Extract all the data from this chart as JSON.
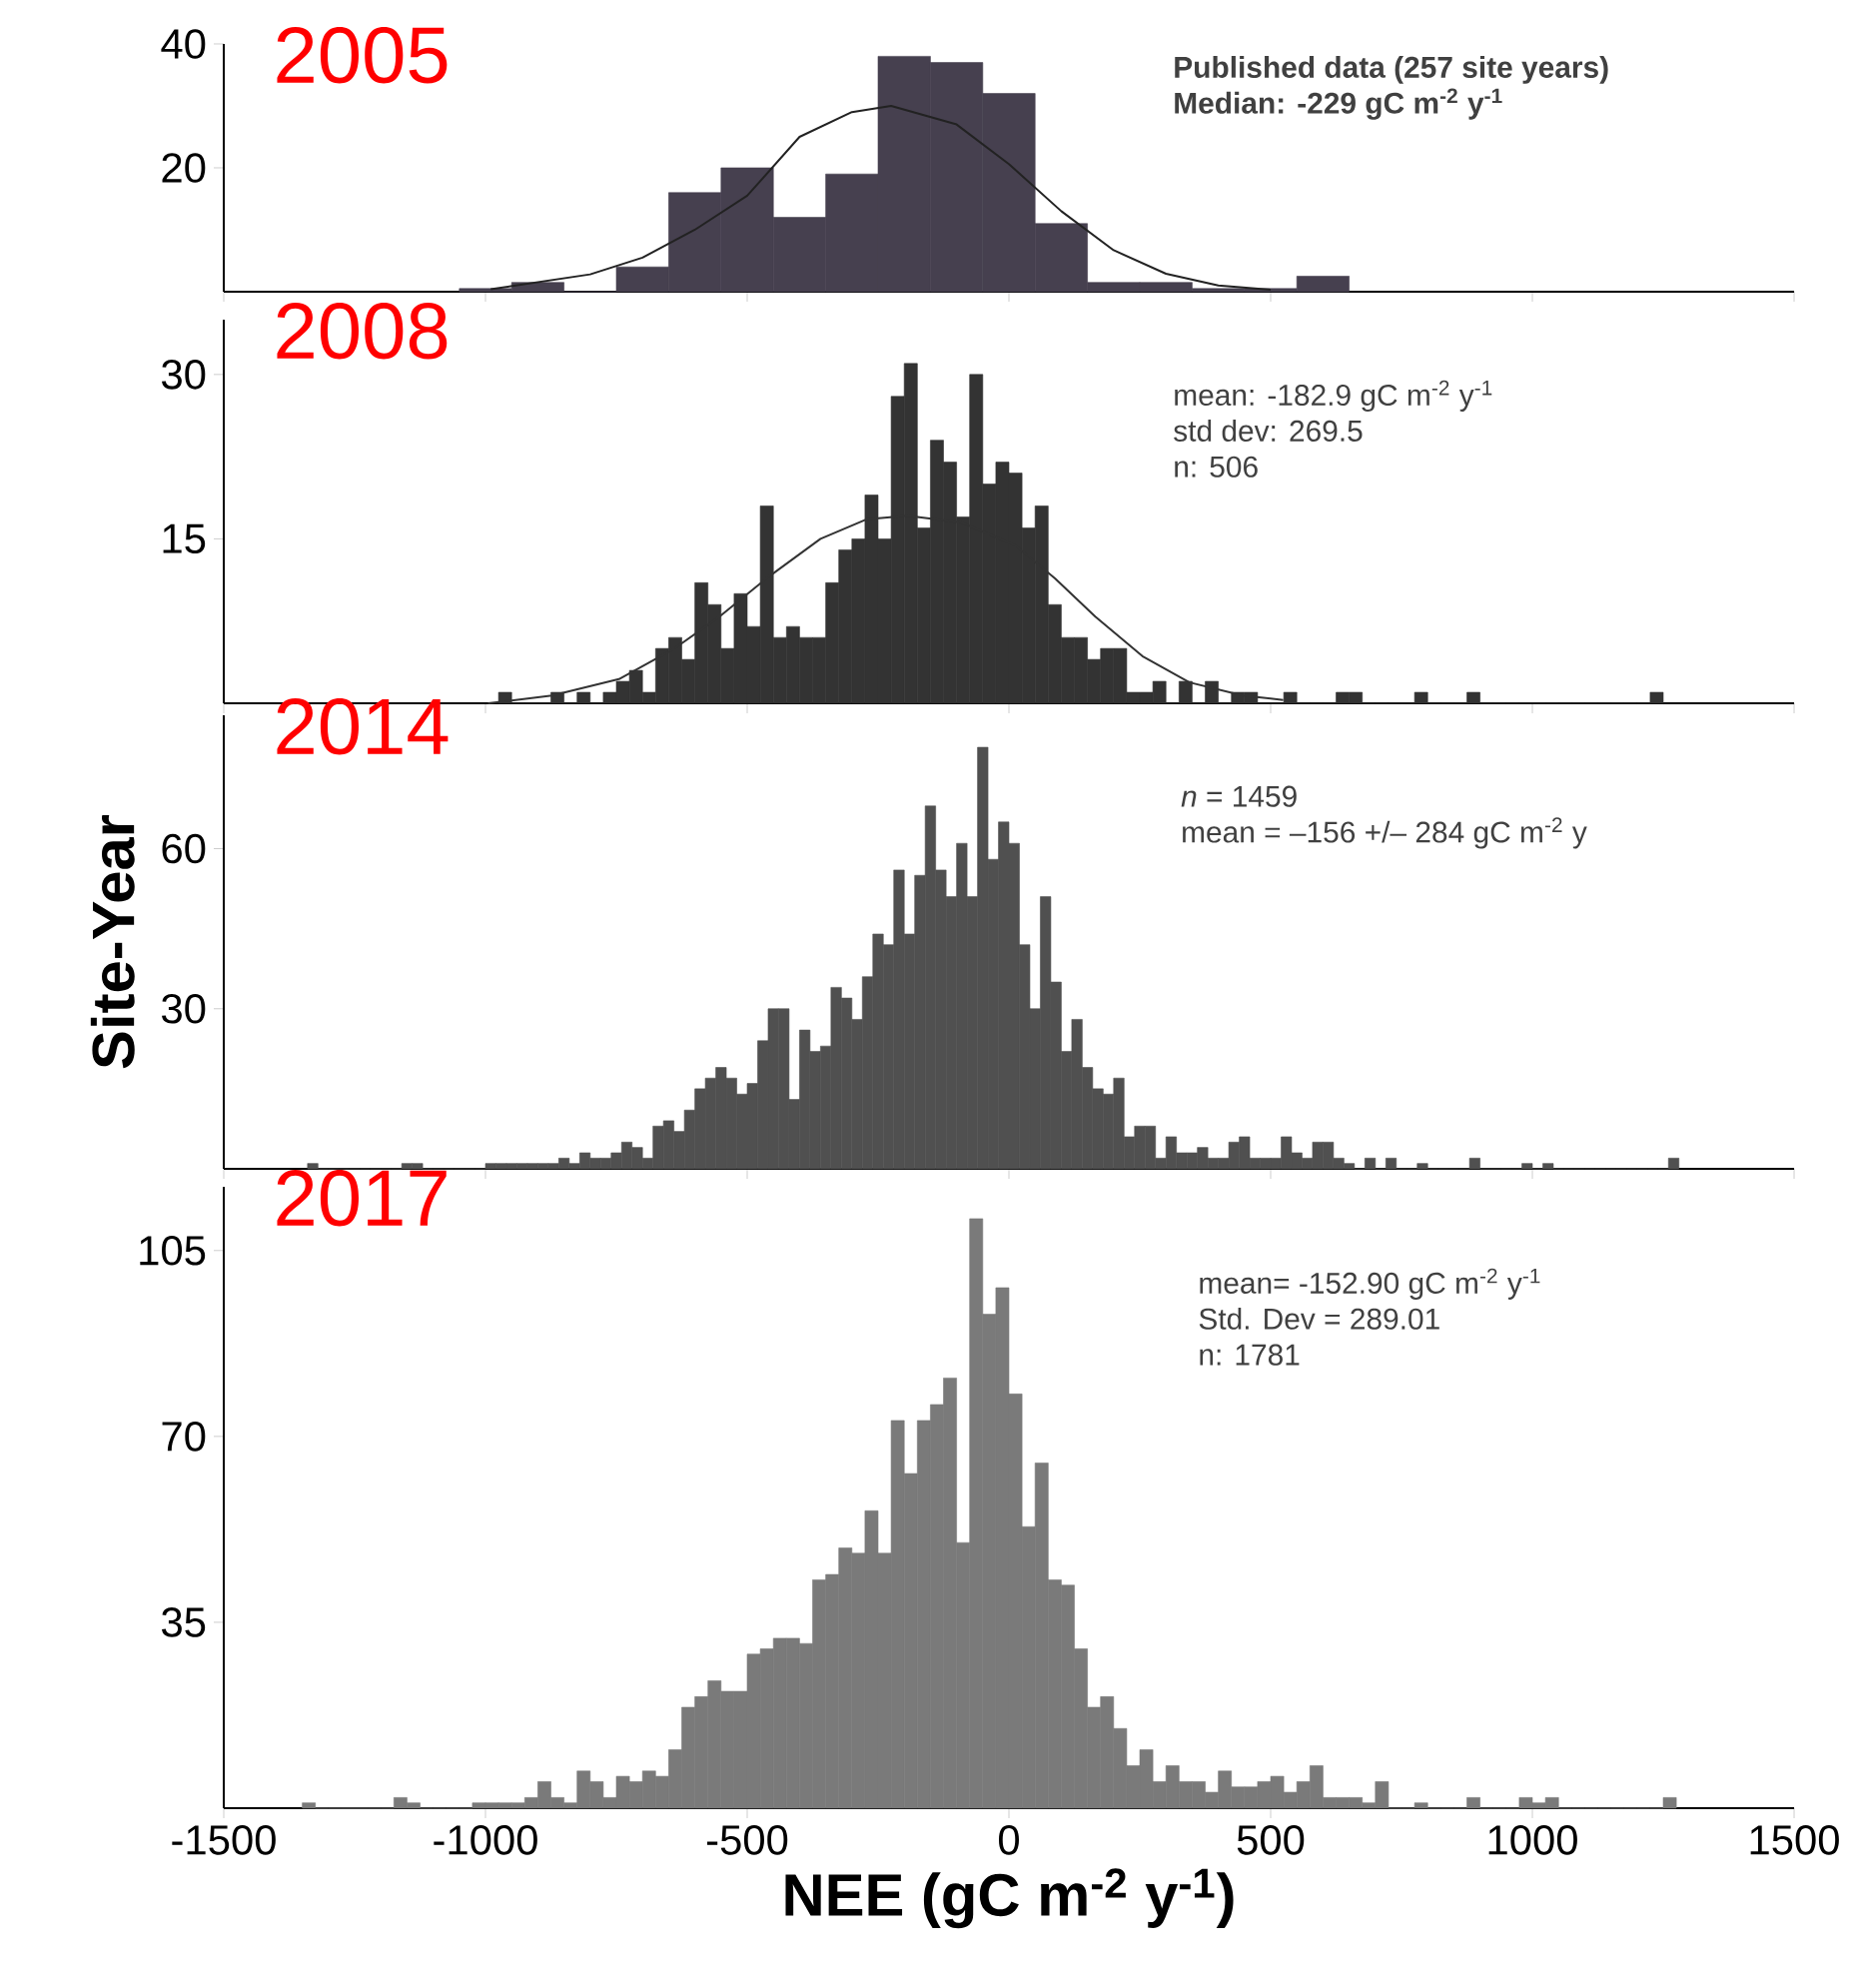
{
  "chart_data": [
    {
      "type": "histogram",
      "title": "2005",
      "color": "#46404f",
      "bins": [
        -1050,
        -950,
        -850,
        -750,
        -650,
        -550,
        -450,
        -350,
        -250,
        -150,
        -50,
        50,
        150,
        250,
        350,
        450,
        550,
        650
      ],
      "values": [
        0.5,
        1.5,
        0,
        4,
        16,
        20,
        12,
        19,
        38,
        37,
        32,
        11,
        1.5,
        1.5,
        0.5,
        0.5,
        2.5
      ],
      "series": [
        {
          "type": "line",
          "color": "#222222",
          "x": [
            -990,
            -800,
            -700,
            -600,
            -500,
            -400,
            -300,
            -225,
            -100,
            0,
            100,
            200,
            300,
            400,
            500
          ],
          "values": [
            0.4,
            2.8,
            5.5,
            10,
            15.5,
            25,
            29,
            30,
            27,
            20.6,
            13,
            6.7,
            2.9,
            1,
            0.3
          ]
        }
      ],
      "xlim": [
        -1500,
        1500
      ],
      "ylim": [
        0,
        40
      ],
      "xticks": [
        -1500,
        -1000,
        -500,
        0,
        500,
        1000,
        1500
      ],
      "yticks": [
        20,
        40
      ],
      "tick_labels": "y",
      "annotations": [
        "**Published data (257 site years)**",
        "**Median: -229 gC m$^{-2}$ y$^{-1}$**"
      ]
    },
    {
      "type": "histogram",
      "title": "2008",
      "color": "#333333",
      "bins": [
        -975,
        -950,
        -925,
        -900,
        -875,
        -850,
        -825,
        -800,
        -775,
        -750,
        -725,
        -700,
        -675,
        -650,
        -625,
        -600,
        -575,
        -550,
        -525,
        -500,
        -475,
        -450,
        -425,
        -400,
        -375,
        -350,
        -325,
        -300,
        -275,
        -250,
        -225,
        -200,
        -175,
        -150,
        -125,
        -100,
        -75,
        -50,
        -25,
        0,
        25,
        50,
        75,
        100,
        125,
        150,
        175,
        200,
        225,
        250,
        275,
        300,
        325,
        350,
        375,
        400,
        425,
        450,
        475,
        500,
        525,
        550,
        575,
        600,
        625,
        650,
        675,
        700,
        725,
        750,
        775,
        800,
        825,
        850,
        875,
        900,
        925,
        950,
        975,
        1000,
        1025,
        1050,
        1075,
        1100,
        1125,
        1150,
        1175,
        1200,
        1225,
        1250
      ],
      "values": [
        1,
        0,
        0,
        0,
        1,
        0,
        1,
        0,
        1,
        2,
        3,
        1,
        5,
        6,
        4,
        11,
        9,
        5,
        10,
        7,
        18,
        6,
        7,
        6,
        6,
        11,
        14,
        15,
        19,
        15,
        28,
        31,
        16,
        24,
        22,
        17,
        30,
        20,
        22,
        21,
        16,
        18,
        9,
        6,
        6,
        4,
        5,
        5,
        1,
        1,
        2,
        0,
        2,
        0,
        2,
        0,
        1,
        1,
        0,
        0,
        1,
        0,
        0,
        0,
        1,
        1,
        0,
        0,
        0,
        0,
        1,
        0,
        0,
        0,
        1,
        0,
        0,
        0,
        0,
        0,
        0,
        0,
        0,
        0,
        0,
        0,
        0,
        0,
        1
      ],
      "series": [
        {
          "type": "line",
          "color": "#333333",
          "x": [
            -995,
            -873,
            -745,
            -642,
            -553,
            -463,
            -360,
            -271,
            -194,
            -91,
            12,
            88,
            165,
            255,
            345,
            447,
            524
          ],
          "values": [
            0,
            0.7,
            2.2,
            4.9,
            7.9,
            11.4,
            15,
            16.8,
            17.1,
            16.5,
            14.4,
            11.4,
            7.9,
            4.3,
            1.9,
            0.7,
            0.3
          ]
        }
      ],
      "xlim": [
        -1500,
        1500
      ],
      "ylim": [
        0,
        35
      ],
      "xticks": [
        -1500,
        -1000,
        -500,
        0,
        500,
        1000,
        1500
      ],
      "yticks": [
        15,
        30
      ],
      "tick_labels": "y",
      "annotations": [
        "mean: -182.9 gC m$^{-2}$ y$^{-1}$",
        "std dev: 269.5",
        "n: 506"
      ]
    },
    {
      "type": "histogram",
      "title": "2014",
      "color": "#505050",
      "ylabel": "Site-Year",
      "bins": [
        -1340,
        -1320,
        -1300,
        -1280,
        -1260,
        -1240,
        -1220,
        -1200,
        -1180,
        -1160,
        -1140,
        -1120,
        -1100,
        -1080,
        -1060,
        -1040,
        -1020,
        -1000,
        -980,
        -960,
        -940,
        -920,
        -900,
        -880,
        -860,
        -840,
        -820,
        -800,
        -780,
        -760,
        -740,
        -720,
        -700,
        -680,
        -660,
        -640,
        -620,
        -600,
        -580,
        -560,
        -540,
        -520,
        -500,
        -480,
        -460,
        -440,
        -420,
        -400,
        -380,
        -360,
        -340,
        -320,
        -300,
        -280,
        -260,
        -240,
        -220,
        -200,
        -180,
        -160,
        -140,
        -120,
        -100,
        -80,
        -60,
        -40,
        -20,
        0,
        20,
        40,
        60,
        80,
        100,
        120,
        140,
        160,
        180,
        200,
        220,
        240,
        260,
        280,
        300,
        320,
        340,
        360,
        380,
        400,
        420,
        440,
        460,
        480,
        500,
        520,
        540,
        560,
        580,
        600,
        620,
        640,
        660,
        680,
        700,
        720,
        740,
        760,
        780,
        800,
        820,
        840,
        860,
        880,
        900,
        920,
        940,
        960,
        980,
        1000,
        1020,
        1040,
        1060,
        1080,
        1100,
        1120,
        1140,
        1160,
        1180,
        1200,
        1220,
        1240,
        1260,
        1280
      ],
      "values": [
        1,
        0,
        0,
        0,
        0,
        0,
        0,
        0,
        0,
        1,
        1,
        0,
        0,
        0,
        0,
        0,
        0,
        1,
        1,
        1,
        1,
        1,
        1,
        1,
        2,
        1,
        3,
        2,
        2,
        3,
        5,
        4,
        2,
        8,
        9,
        7,
        11,
        15,
        17,
        19,
        17,
        14,
        16,
        24,
        30,
        30,
        13,
        26,
        22,
        23,
        34,
        32,
        28,
        36,
        44,
        42,
        56,
        44,
        55,
        68,
        56,
        51,
        61,
        51,
        79,
        58,
        65,
        61,
        42,
        30,
        51,
        35,
        22,
        28,
        19,
        15,
        14,
        17,
        6,
        8,
        8,
        2,
        6,
        3,
        3,
        4,
        2,
        2,
        5,
        6,
        2,
        2,
        2,
        6,
        3,
        2,
        5,
        5,
        2,
        1,
        0,
        2,
        0,
        2,
        0,
        0,
        1,
        0,
        0,
        0,
        0,
        2,
        0,
        0,
        0,
        0,
        1,
        0,
        1,
        0,
        0,
        0,
        0,
        0,
        0,
        0,
        0,
        0,
        0,
        0,
        2
      ],
      "xlim": [
        -1500,
        1500
      ],
      "ylim": [
        0,
        85
      ],
      "xticks": [
        -1500,
        -1000,
        -500,
        0,
        500,
        1000,
        1500
      ],
      "yticks": [
        30,
        60
      ],
      "tick_labels": "y",
      "annotations": [
        "*n* = 1459",
        "mean = –156 +/– 284 gC m$^{-2}$ y"
      ]
    },
    {
      "type": "histogram",
      "title": "2017",
      "color": "#7a7a7a",
      "xlabel": "NEE (gC m$^{-2}$ y$^{-1}$)",
      "bins": [
        -1350,
        -1325,
        -1300,
        -1275,
        -1250,
        -1225,
        -1200,
        -1175,
        -1150,
        -1125,
        -1100,
        -1075,
        -1050,
        -1025,
        -1000,
        -975,
        -950,
        -925,
        -900,
        -875,
        -850,
        -825,
        -800,
        -775,
        -750,
        -725,
        -700,
        -675,
        -650,
        -625,
        -600,
        -575,
        -550,
        -525,
        -500,
        -475,
        -450,
        -425,
        -400,
        -375,
        -350,
        -325,
        -300,
        -275,
        -250,
        -225,
        -200,
        -175,
        -150,
        -125,
        -100,
        -75,
        -50,
        -25,
        0,
        25,
        50,
        75,
        100,
        125,
        150,
        175,
        200,
        225,
        250,
        275,
        300,
        325,
        350,
        375,
        400,
        425,
        450,
        475,
        500,
        525,
        550,
        575,
        600,
        625,
        650,
        675,
        700,
        725,
        750,
        775,
        800,
        825,
        850,
        875,
        900,
        925,
        950,
        975,
        1000,
        1025,
        1050,
        1075,
        1100,
        1125,
        1150,
        1175,
        1200,
        1225,
        1250,
        1275
      ],
      "values": [
        1,
        0,
        0,
        0,
        0,
        0,
        0,
        2,
        1,
        0,
        0,
        0,
        0,
        1,
        1,
        1,
        1,
        2,
        5,
        2,
        1,
        7,
        5,
        2,
        6,
        5,
        7,
        6,
        11,
        19,
        21,
        24,
        22,
        22,
        29,
        30,
        32,
        32,
        31,
        43,
        44,
        49,
        48,
        56,
        48,
        73,
        63,
        73,
        76,
        81,
        50,
        111,
        93,
        98,
        78,
        53,
        65,
        43,
        42,
        30,
        19,
        21,
        15,
        8,
        11,
        5,
        8,
        5,
        5,
        3,
        7,
        4,
        4,
        5,
        6,
        3,
        5,
        8,
        2,
        2,
        2,
        1,
        5,
        0,
        0,
        1,
        0,
        0,
        0,
        2,
        0,
        0,
        0,
        2,
        1,
        2,
        0,
        0,
        0,
        0,
        0,
        0,
        0,
        0,
        2
      ],
      "xlim": [
        -1500,
        1500
      ],
      "ylim": [
        0,
        117
      ],
      "xticks": [
        -1500,
        -1000,
        -500,
        0,
        500,
        1000,
        1500
      ],
      "yticks": [
        35,
        70,
        105
      ],
      "annotations": [
        "mean= -152.90 gC m$^{-2}$ y$^{-1}$",
        "Std. Dev = 289.01",
        "n: 1781"
      ]
    }
  ]
}
